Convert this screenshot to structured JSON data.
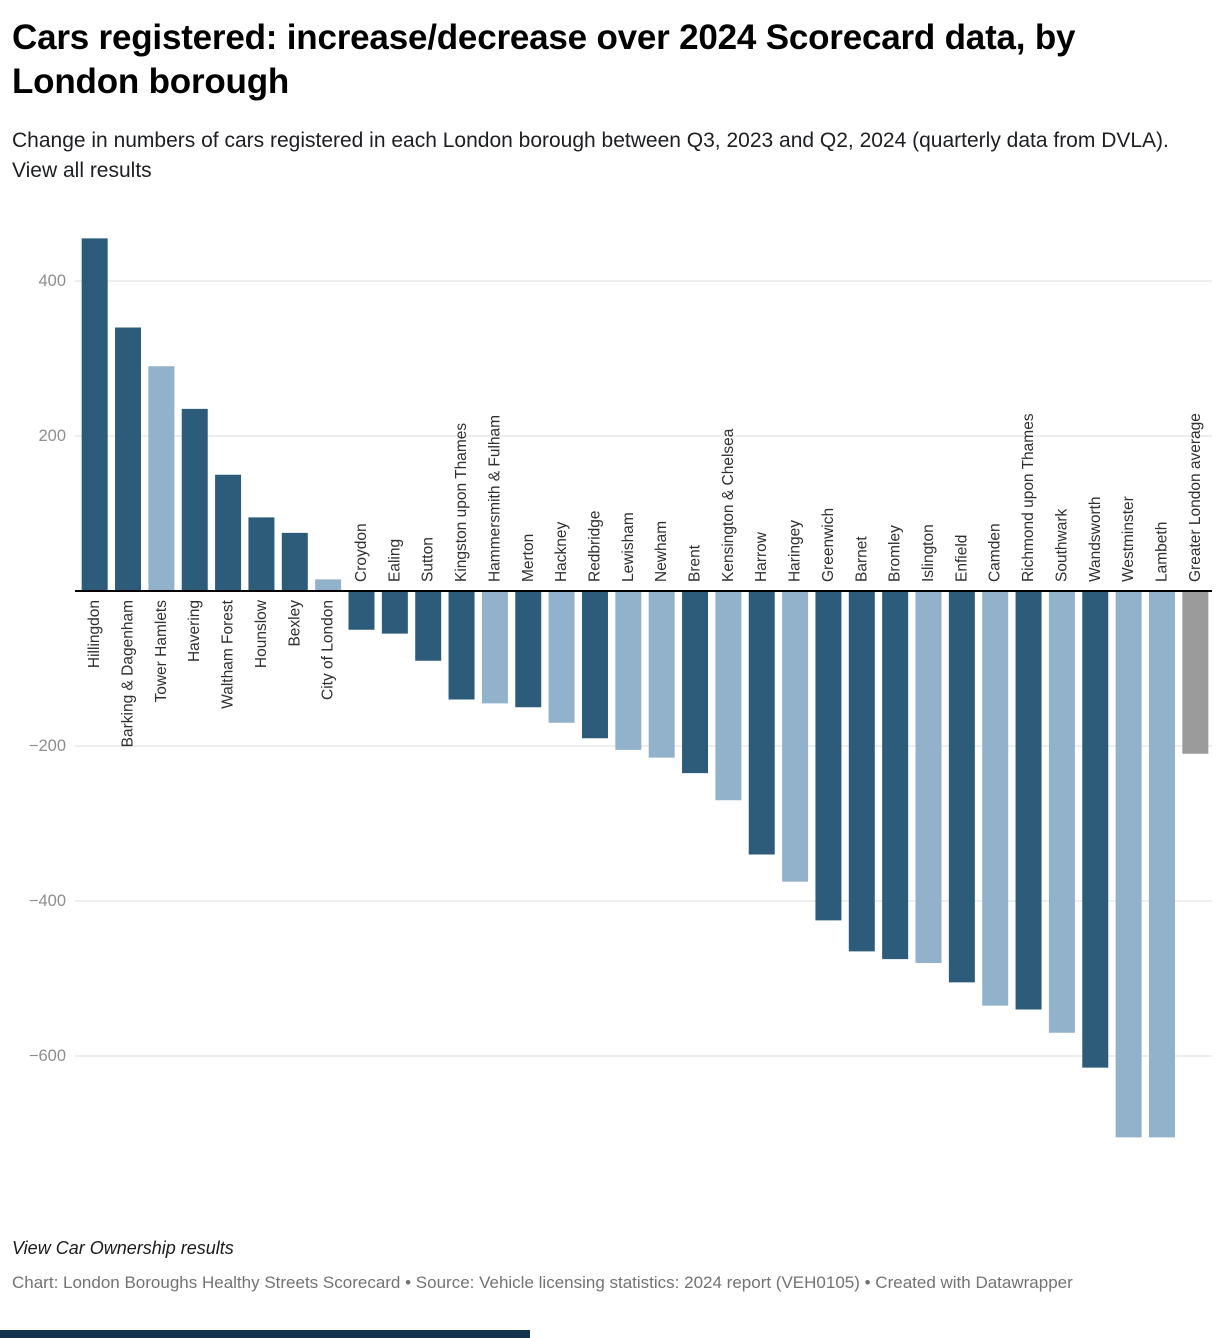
{
  "header": {
    "title": "Cars registered: increase/decrease over 2024 Scorecard data, by London borough",
    "subtitle": "Change in numbers of cars registered in each London borough between Q3, 2023 and Q2, 2024 (quarterly data from DVLA).",
    "link_text": "View all results"
  },
  "footer": {
    "results_link": "View Car Ownership results",
    "byline": "Chart: London Boroughs Healthy Streets Scorecard • Source: Vehicle licensing statistics: 2024 report (VEH0105) • Created with Datawrapper"
  },
  "chart_data": {
    "type": "bar",
    "title": "Cars registered: increase/decrease over 2024 Scorecard data, by London borough",
    "xlabel": "",
    "ylabel": "",
    "ylim": [
      -720,
      470
    ],
    "grid": true,
    "legend": "none",
    "yticks": [
      {
        "value": 400,
        "label": "400"
      },
      {
        "value": 200,
        "label": "200"
      },
      {
        "value": -200,
        "label": "−200"
      },
      {
        "value": -400,
        "label": "−400"
      },
      {
        "value": -600,
        "label": "−600"
      }
    ],
    "color_map": {
      "dark": "#2d5c7a",
      "light": "#92b1ca",
      "average": "#9b9b9b"
    },
    "zero_line_color": "#000000",
    "gridline_color": "#dddddd",
    "categories": [
      "Hillingdon",
      "Barking & Dagenham",
      "Tower Hamlets",
      "Havering",
      "Waltham Forest",
      "Hounslow",
      "Bexley",
      "City of London",
      "Croydon",
      "Ealing",
      "Sutton",
      "Kingston upon Thames",
      "Hammersmith & Fulham",
      "Merton",
      "Hackney",
      "Redbridge",
      "Lewisham",
      "Newham",
      "Brent",
      "Kensington & Chelsea",
      "Harrow",
      "Haringey",
      "Greenwich",
      "Barnet",
      "Bromley",
      "Islington",
      "Enfield",
      "Camden",
      "Richmond upon Thames",
      "Southwark",
      "Wandsworth",
      "Westminster",
      "Lambeth",
      "Greater London average"
    ],
    "values": [
      455,
      340,
      290,
      235,
      150,
      95,
      75,
      15,
      -50,
      -55,
      -90,
      -140,
      -145,
      -150,
      -170,
      -190,
      -205,
      -215,
      -235,
      -270,
      -340,
      -375,
      -425,
      -465,
      -475,
      -480,
      -505,
      -535,
      -540,
      -570,
      -615,
      -705,
      -705,
      -210
    ],
    "groups": [
      "dark",
      "dark",
      "light",
      "dark",
      "dark",
      "dark",
      "dark",
      "light",
      "dark",
      "dark",
      "dark",
      "dark",
      "light",
      "dark",
      "light",
      "dark",
      "light",
      "light",
      "dark",
      "light",
      "dark",
      "light",
      "dark",
      "dark",
      "dark",
      "light",
      "dark",
      "light",
      "dark",
      "light",
      "dark",
      "light",
      "light",
      "average"
    ]
  }
}
